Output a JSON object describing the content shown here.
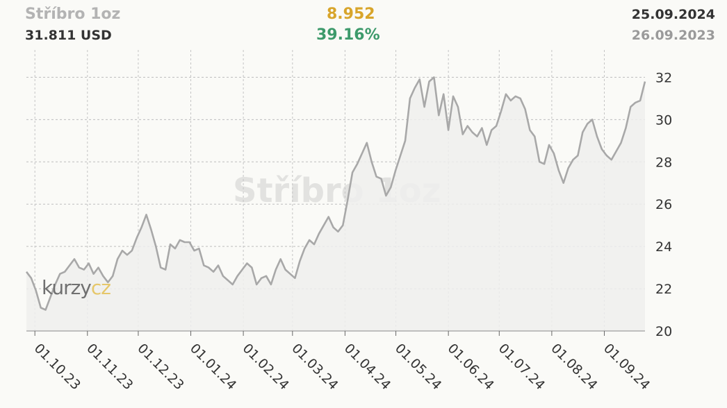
{
  "header": {
    "title": "Stříbro 1oz",
    "price": "31.811 USD",
    "change": "8.952",
    "change_pct": "39.16%",
    "date_end": "25.09.2024",
    "date_start": "26.09.2023"
  },
  "watermark": "Stříbro 1oz",
  "logo": {
    "part1": "kurzy",
    "part2": "cz"
  },
  "colors": {
    "line": "#a8a8a8",
    "change": "#d8a52b",
    "pct": "#3d9a6b"
  },
  "chart_data": {
    "type": "area",
    "title": "",
    "xlabel": "",
    "ylabel": "",
    "ylim": [
      20,
      33
    ],
    "yticks": [
      20,
      22,
      24,
      26,
      28,
      30,
      32
    ],
    "xticks": [
      "01.10.23",
      "01.11.23",
      "01.12.23",
      "01.01.24",
      "01.02.24",
      "01.03.24",
      "01.04.24",
      "01.05.24",
      "01.06.24",
      "01.07.24",
      "01.08.24",
      "01.09.24"
    ],
    "x_start": "26.09.2023",
    "x_end": "25.09.2024",
    "grid": true,
    "series": [
      {
        "values": [
          22.8,
          22.5,
          21.9,
          21.1,
          21.0,
          21.6,
          22.2,
          22.7,
          22.8,
          23.1,
          23.4,
          23.0,
          22.9,
          23.2,
          22.7,
          23.0,
          22.6,
          22.3,
          22.6,
          23.4,
          23.8,
          23.6,
          23.8,
          24.4,
          24.9,
          25.5,
          24.8,
          24.0,
          23.0,
          22.9,
          24.1,
          23.9,
          24.3,
          24.2,
          24.2,
          23.8,
          23.9,
          23.1,
          23.0,
          22.8,
          23.1,
          22.6,
          22.4,
          22.2,
          22.6,
          22.9,
          23.2,
          23.0,
          22.2,
          22.5,
          22.6,
          22.2,
          22.9,
          23.4,
          22.9,
          22.7,
          22.5,
          23.3,
          23.9,
          24.3,
          24.1,
          24.6,
          25.0,
          25.4,
          24.9,
          24.7,
          25.0,
          26.2,
          27.5,
          27.9,
          28.4,
          28.9,
          28.0,
          27.3,
          27.2,
          26.4,
          26.8,
          27.6,
          28.3,
          29.0,
          31.0,
          31.5,
          31.9,
          30.6,
          31.8,
          32.0,
          30.2,
          31.2,
          29.5,
          31.1,
          30.6,
          29.3,
          29.7,
          29.4,
          29.2,
          29.6,
          28.8,
          29.5,
          29.7,
          30.4,
          31.2,
          30.9,
          31.1,
          31.0,
          30.5,
          29.5,
          29.2,
          28.0,
          27.9,
          28.8,
          28.4,
          27.6,
          27.0,
          27.7,
          28.1,
          28.3,
          29.4,
          29.8,
          30.0,
          29.2,
          28.6,
          28.3,
          28.1,
          28.5,
          28.9,
          29.6,
          30.6,
          30.8,
          30.9,
          31.8
        ]
      }
    ]
  }
}
